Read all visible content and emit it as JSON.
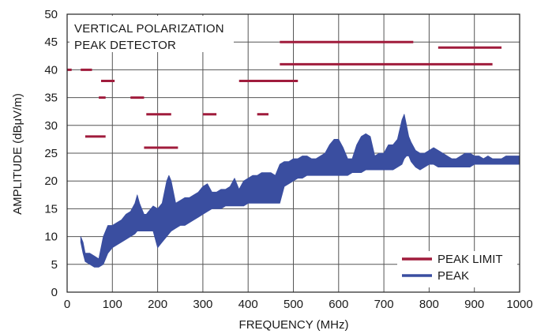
{
  "chart_data": {
    "type": "line",
    "title": "",
    "xlabel": "FREQUENCY (MHz)",
    "ylabel": "AMPLITUDE (dBμV/m)",
    "xlim": [
      0,
      1000
    ],
    "ylim": [
      0,
      50
    ],
    "xticks": [
      0,
      100,
      200,
      300,
      400,
      500,
      600,
      700,
      800,
      900,
      1000
    ],
    "yticks": [
      0,
      5,
      10,
      15,
      20,
      25,
      30,
      35,
      40,
      45,
      50
    ],
    "grid": true,
    "legend_position": "bottom-right",
    "annotation": [
      "VERTICAL POLARIZATION",
      "PEAK DETECTOR"
    ],
    "colors": {
      "peak_limit": "#a01c3c",
      "peak": "#3a4ea0",
      "grid": "#555555"
    },
    "series": [
      {
        "name": "PEAK LIMIT",
        "type": "segments",
        "segments": [
          [
            0,
            10,
            40
          ],
          [
            30,
            55,
            40
          ],
          [
            40,
            85,
            28
          ],
          [
            70,
            85,
            35
          ],
          [
            75,
            105,
            38
          ],
          [
            140,
            170,
            35
          ],
          [
            170,
            245,
            26
          ],
          [
            175,
            230,
            32
          ],
          [
            300,
            330,
            32
          ],
          [
            380,
            510,
            38
          ],
          [
            420,
            445,
            32
          ],
          [
            470,
            765,
            45
          ],
          [
            470,
            940,
            41
          ],
          [
            820,
            960,
            44
          ]
        ]
      },
      {
        "name": "PEAK",
        "type": "band",
        "x": [
          30,
          35,
          40,
          50,
          60,
          70,
          80,
          90,
          100,
          110,
          120,
          130,
          140,
          150,
          155,
          160,
          165,
          170,
          175,
          180,
          190,
          200,
          210,
          220,
          225,
          230,
          240,
          250,
          260,
          270,
          280,
          290,
          300,
          310,
          320,
          330,
          340,
          350,
          360,
          370,
          380,
          390,
          400,
          410,
          420,
          430,
          440,
          450,
          460,
          470,
          480,
          490,
          500,
          510,
          520,
          530,
          540,
          550,
          560,
          570,
          580,
          590,
          600,
          610,
          620,
          630,
          640,
          650,
          660,
          670,
          680,
          690,
          700,
          710,
          720,
          730,
          740,
          745,
          750,
          755,
          760,
          770,
          780,
          790,
          800,
          810,
          820,
          830,
          840,
          850,
          860,
          870,
          880,
          890,
          900,
          910,
          920,
          930,
          940,
          950,
          960,
          970,
          980,
          990,
          1000
        ],
        "upper": [
          10,
          9,
          7,
          7,
          6.5,
          6,
          10,
          12,
          12,
          12.5,
          13,
          14,
          14.5,
          16,
          17.5,
          16,
          15,
          14,
          14,
          14.5,
          15.5,
          15,
          16,
          20,
          21,
          20,
          16,
          16.5,
          17,
          17,
          17.5,
          18,
          19,
          19.5,
          18,
          18,
          18.5,
          18.5,
          19,
          20.5,
          18.5,
          20,
          20.5,
          21,
          21,
          21.5,
          21.5,
          21.5,
          21,
          23,
          23.5,
          23.5,
          24,
          24,
          24.5,
          24.5,
          24,
          24,
          24.5,
          25,
          26.5,
          27.5,
          27.5,
          26,
          24,
          24,
          26.5,
          28,
          28.5,
          28,
          24.5,
          25,
          25,
          26.5,
          26.5,
          27.5,
          31,
          32,
          30,
          28,
          27,
          25.5,
          25,
          25,
          25.5,
          26,
          25.5,
          25,
          24.5,
          24,
          24,
          24.5,
          25,
          25,
          24.5,
          24.5,
          24,
          24.5,
          24,
          24,
          24,
          24.5,
          24.5,
          24.5,
          24.5
        ],
        "lower": [
          9,
          7,
          5.5,
          5,
          4.5,
          4.5,
          5,
          7,
          8,
          8.5,
          9,
          9.5,
          10,
          10.5,
          11,
          11,
          11,
          11,
          11,
          11,
          11,
          8,
          9,
          10,
          10.5,
          11,
          11.5,
          12,
          12,
          12.5,
          13,
          13.5,
          14,
          14.5,
          15,
          15,
          15,
          15.5,
          15.5,
          15.5,
          15.5,
          15.5,
          16,
          16,
          16,
          16,
          16,
          16,
          16,
          16,
          19,
          19.5,
          20,
          20.5,
          20.5,
          21,
          21,
          21,
          21,
          21,
          21,
          21,
          21,
          21,
          21,
          21.5,
          21.5,
          21.5,
          22,
          22,
          22,
          22,
          22,
          22,
          22,
          22.5,
          23,
          24,
          24.5,
          24.5,
          23.5,
          22.5,
          22,
          22.5,
          23,
          23,
          22.5,
          22.5,
          22.5,
          22.5,
          22.5,
          22.5,
          22.5,
          22.5,
          23,
          23,
          23,
          23,
          23,
          23,
          23,
          23,
          23,
          23,
          23
        ]
      }
    ]
  }
}
